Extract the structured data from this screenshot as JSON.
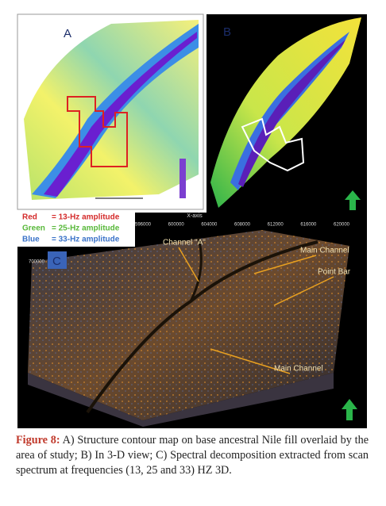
{
  "panels": [
    {
      "label": "A"
    },
    {
      "label": "B"
    },
    {
      "label": "C"
    }
  ],
  "legend": [
    {
      "name": "Red",
      "text": "= 13-Hz amplitude",
      "color": "#d42a2a"
    },
    {
      "name": "Green",
      "text": "= 25-Hz amplitude",
      "color": "#58b83a"
    },
    {
      "name": "Blue",
      "text": "= 33-Hz amplitude",
      "color": "#3a72c8"
    }
  ],
  "panel_c": {
    "axis_title": "X-axis",
    "ticks": [
      "596000",
      "600000",
      "604000",
      "608000",
      "612000",
      "616000",
      "620000"
    ],
    "y_tick": "700000",
    "annotations": [
      "Channel \"A\"",
      "Main Channel",
      "Point Bar",
      "Main Channel"
    ]
  },
  "caption": {
    "label": "Figure 8:",
    "text": "A) Structure contour map on base ancestral Nile fill overlaid by the area of study; B) In 3-D view; C) Spectral decomposition extracted from scan spectrum at frequencies (13, 25 and 33) HZ 3D."
  }
}
